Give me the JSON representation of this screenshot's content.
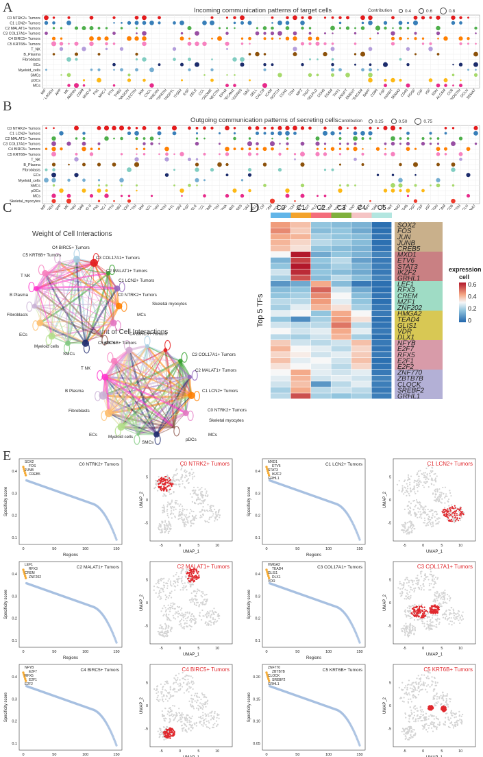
{
  "panels": {
    "A": "A",
    "B": "B",
    "C": "C",
    "D": "D",
    "E": "E"
  },
  "panelA": {
    "title": "Incoming communication patterns of target cells",
    "legend_title": "Contribution",
    "legend_values": [
      "0.4",
      "0.6",
      "0.8"
    ],
    "rows": [
      "C0 NTRK2+ Tumors",
      "C1 LCN2+ Tumors",
      "C2 MALAT1+ Tumors",
      "C3 COL17A1+ Tumors",
      "C4 BIRC5+ Tumors",
      "C5 KRT6B+ Tumors",
      "T_NK",
      "B_Plasma",
      "Fibroblasts",
      "ECs",
      "Myeloid_cells",
      "SMCs",
      "pDCs",
      "MCs"
    ],
    "columns": [
      "MIF",
      "COLLAGEN",
      "APP",
      "MK",
      "LAMININ",
      "CD99",
      "MHC-II",
      "FN1",
      "MHC-I",
      "PTN",
      "THBS",
      "TENASCIN",
      "GALECTIN",
      "JAM",
      "CXCL",
      "ANNEXIN",
      "VISFATIN",
      "ANGPTL",
      "ITGB2",
      "EGF",
      "SELE",
      "CCL",
      "DESMOSOME",
      "NECTIN",
      "EPHA",
      "PECAM1",
      "ADGRE5",
      "GAS",
      "SELL",
      "CALCR",
      "ICAM",
      "NOTCH",
      "CDH1",
      "CDH",
      "MPZ",
      "TIGIT",
      "SELPLG",
      "CDH5",
      "ESAM",
      "THY1",
      "ANGPT",
      "COMPLEMENT",
      "CEACAM",
      "BAFF",
      "CD86",
      "FGF",
      "nsNWT",
      "SEMA3",
      "CD45",
      "PDGF",
      "CSF",
      "IGF",
      "EDN",
      "ALCAM",
      "CD6",
      "PERIOSTIN",
      "OCLN",
      "SEMA7"
    ]
  },
  "panelB": {
    "title": "Outgoing communication patterns of secreting cells",
    "legend_title": "Contribution",
    "legend_values": [
      "0.25",
      "0.50",
      "0.75"
    ],
    "rows": [
      "C0 NTRK2+ Tumors",
      "C1 LCN2+ Tumors",
      "C2 MALAT1+ Tumors",
      "C3 COL17A1+ Tumors",
      "C4 BIRC5+ Tumors",
      "C5 KRT6B+ Tumors",
      "T_NK",
      "B_Plasma",
      "Fibroblasts",
      "ECs",
      "Myeloid_cells",
      "SMCs",
      "pDCs",
      "MCs",
      "Skeletal_myocytes"
    ],
    "columns": [
      "MIF",
      "COLLAGEN",
      "APP",
      "MK",
      "LAMININ",
      "CD99",
      "MHC-II",
      "FN1",
      "MHC-I",
      "PTN",
      "THBS",
      "TENASCIN",
      "GALECTIN",
      "JAM",
      "CXCL",
      "ANNEXIN",
      "VISFATIN",
      "ANGPTL",
      "ITGB2",
      "EGF",
      "SELE",
      "CCL",
      "DESMOSOME",
      "NECTIN",
      "EPHA",
      "PECAM1",
      "ADGRE5",
      "GAS",
      "SELL",
      "CALCR",
      "ICAM",
      "NOTCH",
      "CDH1",
      "CDH",
      "MPZ",
      "TIGIT",
      "SELPLG",
      "CDH5",
      "ESAM",
      "THY1",
      "ANGPT",
      "COMPLEMENT",
      "CEACAM",
      "BAFF",
      "CD86",
      "FGF",
      "nsNWT",
      "SEMA3",
      "CD45",
      "PDGF",
      "CSF",
      "IGF",
      "EDN",
      "ALCAM",
      "CD6",
      "PERIOSTIN",
      "OCLN",
      "SEMA7"
    ]
  },
  "panelC": {
    "weight_title": "Weight of Cell Interactions",
    "count_title": "Count of Cell Interactions",
    "nodes": [
      "C4 BIRC5+ Tumors",
      "C5 KRT6B+ Tumors",
      "C3 COL17A1+ Tumors",
      "C2 MALAT1+ Tumors",
      "C1 LCN2+ Tumors",
      "C0 NTRK2+ Tumors",
      "Skeletal myocytes",
      "MCs",
      "pDCs",
      "SMCs",
      "Myeloid cells",
      "ECs",
      "Fibroblasts",
      "B Plasma",
      "T NK"
    ],
    "colors": [
      "#a6cee3",
      "#e31a1c",
      "#33a02c",
      "#9467bd",
      "#ff7f00",
      "#e377c2",
      "#8c564b",
      "#1f2b6e",
      "#7fc97f",
      "#b2df8a",
      "#fdbf6f",
      "#cab2d6",
      "#ff33cc",
      "#f781bf",
      "#d4a6d0"
    ]
  },
  "panelD": {
    "clusters": [
      "C0",
      "C1",
      "C2",
      "C3",
      "C4",
      "C5"
    ],
    "cluster_colors": [
      "#62b5e8",
      "#f3a32c",
      "#f46d7b",
      "#7fb03d",
      "#f5c4c4",
      "#b3e6e0"
    ],
    "y_label": "Top 5 TFs",
    "legend_title_1": "expression",
    "legend_title_2": "cell",
    "legend_ticks": [
      "0.6",
      "0.4",
      "0.2",
      "0"
    ],
    "groups": [
      {
        "color": "#c9b08b",
        "tfs": [
          "SOX2",
          "FOS",
          "JUN",
          "JUNB",
          "CREB5"
        ]
      },
      {
        "color": "#c98083",
        "tfs": [
          "MXD1",
          "ETV6",
          "STAT3",
          "IKZF2",
          "GRHL1"
        ]
      },
      {
        "color": "#9fdcc5",
        "tfs": [
          "LEF1",
          "RFX3",
          "CREM",
          "MZF1",
          "ZNF202"
        ]
      },
      {
        "color": "#d8c854",
        "tfs": [
          "HMGA2",
          "TEAD4",
          "GLIS1",
          "VDR",
          "DLX1"
        ]
      },
      {
        "color": "#d89ba9",
        "tfs": [
          "NFYB",
          "E2F7",
          "RFX5",
          "E2F1",
          "E2F2"
        ]
      },
      {
        "color": "#b3b0d6",
        "tfs": [
          "ZNF770",
          "ZBTB7B",
          "CLOCK",
          "SREBF2",
          "GRHL1"
        ]
      }
    ],
    "matrix": [
      [
        0.46,
        0.4,
        0.2,
        0.18,
        0.16,
        0.02
      ],
      [
        0.48,
        0.38,
        0.18,
        0.2,
        0.14,
        0.02
      ],
      [
        0.44,
        0.42,
        0.22,
        0.2,
        0.18,
        0.03
      ],
      [
        0.42,
        0.36,
        0.24,
        0.22,
        0.18,
        0.02
      ],
      [
        0.4,
        0.34,
        0.2,
        0.18,
        0.16,
        0.03
      ],
      [
        0.3,
        0.62,
        0.14,
        0.2,
        0.16,
        0.06
      ],
      [
        0.16,
        0.56,
        0.2,
        0.24,
        0.12,
        0.04
      ],
      [
        0.2,
        0.6,
        0.18,
        0.22,
        0.16,
        0.05
      ],
      [
        0.26,
        0.58,
        0.2,
        0.18,
        0.14,
        0.04
      ],
      [
        0.22,
        0.54,
        0.18,
        0.24,
        0.18,
        0.06
      ],
      [
        0.1,
        0.14,
        0.44,
        0.18,
        0.04,
        0.02
      ],
      [
        0.18,
        0.2,
        0.52,
        0.26,
        0.14,
        0.02
      ],
      [
        0.2,
        0.22,
        0.48,
        0.3,
        0.18,
        0.03
      ],
      [
        0.24,
        0.24,
        0.46,
        0.28,
        0.2,
        0.02
      ],
      [
        0.22,
        0.28,
        0.42,
        0.34,
        0.22,
        0.04
      ],
      [
        0.28,
        0.3,
        0.2,
        0.44,
        0.3,
        0.04
      ],
      [
        0.2,
        0.08,
        0.22,
        0.46,
        0.34,
        0.02
      ],
      [
        0.26,
        0.24,
        0.24,
        0.5,
        0.24,
        0.03
      ],
      [
        0.3,
        0.26,
        0.28,
        0.44,
        0.28,
        0.04
      ],
      [
        0.24,
        0.22,
        0.26,
        0.42,
        0.22,
        0.02
      ],
      [
        0.38,
        0.26,
        0.24,
        0.26,
        0.4,
        0.04
      ],
      [
        0.42,
        0.3,
        0.28,
        0.24,
        0.36,
        0.03
      ],
      [
        0.36,
        0.32,
        0.26,
        0.28,
        0.38,
        0.04
      ],
      [
        0.4,
        0.28,
        0.3,
        0.26,
        0.4,
        0.02
      ],
      [
        0.34,
        0.3,
        0.28,
        0.24,
        0.36,
        0.03
      ],
      [
        0.3,
        0.44,
        0.28,
        0.26,
        0.28,
        0.04
      ],
      [
        0.28,
        0.42,
        0.26,
        0.28,
        0.26,
        0.06
      ],
      [
        0.26,
        0.4,
        0.1,
        0.24,
        0.28,
        0.05
      ],
      [
        0.22,
        0.44,
        0.24,
        0.26,
        0.24,
        0.04
      ],
      [
        0.24,
        0.54,
        0.22,
        0.2,
        0.22,
        0.05
      ]
    ]
  },
  "panelE": {
    "xlabel": "Regions",
    "ylabel": "Specificity score",
    "umap_xlabel": "UMAP_1",
    "umap_ylabel": "UMAP_2",
    "plots": [
      {
        "title": "C0 NTRK2+ Tumors",
        "tfs": [
          "SOX2",
          "FOS",
          "JUNB",
          "CREB5"
        ],
        "yticks": [
          "0.4",
          "0.3",
          "0.2",
          "0.1"
        ],
        "xticks": [
          "0",
          "50",
          "100",
          "150"
        ],
        "umap_title": "C0 NTRK2+ Tumors"
      },
      {
        "title": "C1 LCN2+ Tumors",
        "tfs": [
          "MXD1",
          "ETV6",
          "STAT3",
          "IKZF2",
          "GRHL1"
        ],
        "yticks": [
          "0.4",
          "0.3",
          "0.2",
          "0.1"
        ],
        "xticks": [
          "0",
          "50",
          "100",
          "150"
        ],
        "umap_title": "C1 LCN2+ Tumors"
      },
      {
        "title": "C2 MALAT1+ Tumors",
        "tfs": [
          "LEF1",
          "RFX3",
          "CREM",
          "ZNF202"
        ],
        "yticks": [
          "0.4",
          "0.3",
          "0.2",
          "0.1"
        ],
        "xticks": [
          "0",
          "50",
          "100",
          "150"
        ],
        "umap_title": "C2 MALAT1+ Tumors"
      },
      {
        "title": "C3 COL17A1+ Tumors",
        "tfs": [
          "HMGA2",
          "TEAD4",
          "GLIS1",
          "DLX1",
          "VDR"
        ],
        "yticks": [
          "0.4",
          "0.3",
          "0.2",
          "0.1"
        ],
        "xticks": [
          "0",
          "50",
          "100",
          "150"
        ],
        "umap_title": "C3 COL17A1+ Tumors"
      },
      {
        "title": "C4 BIRC5+ Tumors",
        "tfs": [
          "NFYB",
          "E2F7",
          "RFX5",
          "E2F1",
          "E2F2"
        ],
        "yticks": [
          "0.4",
          "0.3",
          "0.2",
          "0.1"
        ],
        "xticks": [
          "0",
          "50",
          "100",
          "150"
        ],
        "umap_title": "C4 BIRC5+ Tumors"
      },
      {
        "title": "C5 KRT6B+ Tumors",
        "tfs": [
          "ZNF770",
          "ZBTB7B",
          "CLOCK",
          "SREBF2",
          "GRHL1"
        ],
        "yticks": [
          "0.20",
          "0.15",
          "0.10",
          "0.05"
        ],
        "xticks": [
          "0",
          "50",
          "100",
          "150"
        ],
        "umap_title": "C5 KRT6B+ Tumors"
      }
    ],
    "umap_xticks": [
      "-5",
      "0",
      "5",
      "10"
    ],
    "umap_yticks": [
      "5",
      "0",
      "-5"
    ]
  }
}
